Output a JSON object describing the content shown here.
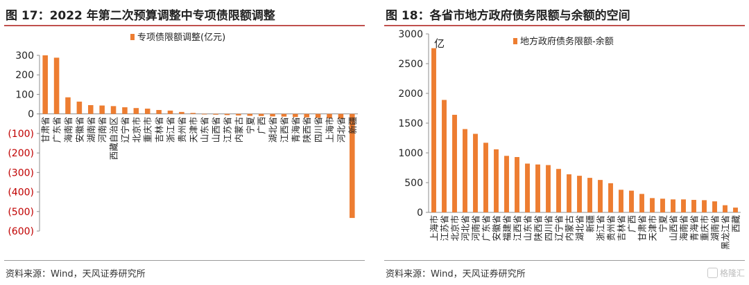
{
  "left": {
    "title": "图 17：2022 年第二次预算调整中专项债限额调整",
    "source": "资料来源：Wind，天风证券研究所"
  },
  "right": {
    "title": "图 18：各省市地方政府债务限额与余额的空间",
    "source": "资料来源：Wind，天风证券研究所"
  },
  "watermark": "格隆汇",
  "colors": {
    "bar": "#ed7d31",
    "negative_tick": "#c00000",
    "rule": "#c0504d"
  },
  "chart_data": [
    {
      "type": "bar",
      "title": "",
      "xlabel": "",
      "ylabel": "",
      "ylim": [
        -600,
        300
      ],
      "yticks": [
        300,
        200,
        100,
        0,
        -100,
        -200,
        -300,
        -400,
        -500,
        -600
      ],
      "ytick_labels": [
        "300",
        "200",
        "100",
        "0",
        "(100)",
        "(200)",
        "(300)",
        "(400)",
        "(500)",
        "(600)"
      ],
      "grid": false,
      "legend_position": "top-center",
      "series": [
        {
          "name": "专项债限额调整(亿元)",
          "categories": [
            "甘肃省",
            "广东省",
            "海南省",
            "安徽省",
            "湖南省",
            "河南省",
            "西藏自治区",
            "辽宁省",
            "北京市",
            "重庆市",
            "吉林省",
            "浙江省",
            "贵州省",
            "天津市",
            "山东省",
            "山西省",
            "江苏省",
            "内蒙古",
            "宁夏",
            "广西",
            "湖北省",
            "江西省",
            "青海省",
            "陕西省",
            "四川省",
            "上海市",
            "河北省",
            "新疆"
          ],
          "values": [
            300,
            288,
            85,
            63,
            45,
            43,
            40,
            34,
            30,
            27,
            20,
            17,
            10,
            5,
            -2,
            -4,
            -6,
            -8,
            -10,
            -11,
            -13,
            -14,
            -16,
            -18,
            -20,
            -22,
            -25,
            -533
          ]
        }
      ]
    },
    {
      "type": "bar",
      "title": "",
      "xlabel": "",
      "ylabel": "亿",
      "ylim": [
        0,
        3000
      ],
      "yticks": [
        3000,
        2500,
        2000,
        1500,
        1000,
        500,
        0
      ],
      "ytick_labels": [
        "3000",
        "2500",
        "2000",
        "1500",
        "1000",
        "500",
        "0"
      ],
      "grid": false,
      "legend_position": "top-center",
      "series": [
        {
          "name": "地方政府债务限额-余额",
          "categories": [
            "上海市",
            "江苏省",
            "北京市",
            "河北省",
            "河南省",
            "广东省",
            "安徽省",
            "福建省",
            "江西省",
            "山东省",
            "陕西省",
            "四川省",
            "辽宁省",
            "内蒙古",
            "湖北省",
            "新疆",
            "浙江省",
            "贵州省",
            "吉林省",
            "广西",
            "甘肃省",
            "天津市",
            "宁夏",
            "山西省",
            "海南省",
            "青海省",
            "重庆市",
            "湖南省",
            "黑龙江省",
            "西藏"
          ],
          "values": [
            2760,
            1890,
            1640,
            1400,
            1320,
            1170,
            1060,
            950,
            930,
            820,
            805,
            795,
            730,
            640,
            615,
            580,
            545,
            490,
            380,
            365,
            310,
            240,
            230,
            218,
            218,
            210,
            205,
            185,
            120,
            80
          ]
        }
      ]
    }
  ]
}
